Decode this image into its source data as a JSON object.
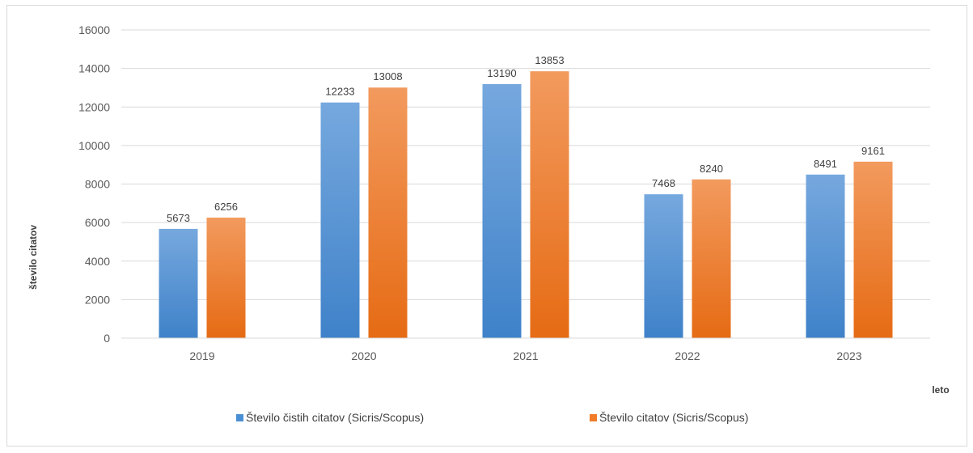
{
  "chart_data": {
    "type": "bar",
    "categories": [
      "2019",
      "2020",
      "2021",
      "2022",
      "2023"
    ],
    "series": [
      {
        "name": "Število čistih citatov (Sicris/Scopus)",
        "values": [
          5673,
          12233,
          13190,
          7468,
          8491
        ],
        "color": "#4a8fd4"
      },
      {
        "name": "Število citatov (Sicris/Scopus)",
        "values": [
          6256,
          13008,
          13853,
          8240,
          9161
        ],
        "color": "#f07b28"
      }
    ],
    "xlabel": "leto",
    "ylabel": "število citatov",
    "ylim": [
      0,
      16000
    ],
    "yticks": [
      0,
      2000,
      4000,
      6000,
      8000,
      10000,
      12000,
      14000,
      16000
    ],
    "grid": true,
    "legend_position": "bottom"
  }
}
